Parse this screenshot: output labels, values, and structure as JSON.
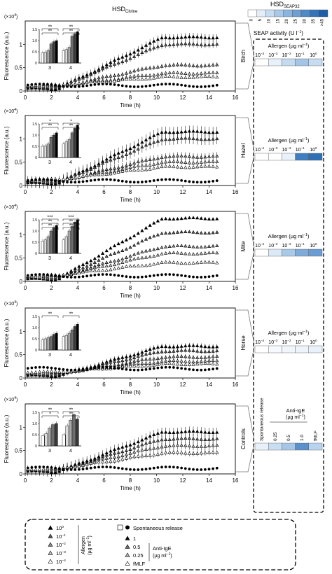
{
  "figure": {
    "main_title": "HSD",
    "main_title_sub": "Citrine",
    "y_label": "Fluorescence (a.u.)",
    "y_multiplier": "(×10",
    "y_multiplier_exp": "4",
    "y_multiplier_close": ")",
    "x_label": "Time (h)"
  },
  "heatmap": {
    "title": "HSD",
    "title_sub": "SEAP32",
    "scale_ticks": [
      "0",
      "5",
      "10",
      "15",
      "20",
      "25",
      "30",
      "35",
      ">45"
    ],
    "scale_colors": [
      "#ffffff",
      "#e3eef9",
      "#c6dcf1",
      "#a8c8e8",
      "#8bb4de",
      "#6d9fd3",
      "#4f89c6",
      "#3473b7",
      "#1f5ea6"
    ],
    "unit_label": "SEAP activity (U l",
    "unit_exp": "−1",
    "unit_close": ")",
    "allergen_label": "Allergen (µg ml",
    "allergen_exp": "−1",
    "allergen_close": ")",
    "conc_labels": [
      "10",
      "10",
      "10",
      "10",
      "10"
    ],
    "conc_exps": [
      "−4",
      "−3",
      "−2",
      "−1",
      "0"
    ],
    "rows": [
      {
        "panel": "Birch",
        "colors": [
          "#ffffff",
          "#e8f1fa",
          "#c4daef",
          "#a4c5e6",
          "#c6dcf1"
        ]
      },
      {
        "panel": "Hazel",
        "colors": [
          "#ffffff",
          "#ffffff",
          "#e9f2fa",
          "#3f7ec0",
          "#2f6fb5"
        ]
      },
      {
        "panel": "Mite",
        "colors": [
          "#ffffff",
          "#dbe9f6",
          "#a9c9e8",
          "#7fabd9",
          "#6a9dd3"
        ]
      },
      {
        "panel": "Horse",
        "colors": [
          "#ffffff",
          "#f6f9fd",
          "#f1f6fc",
          "#eef4fb",
          "#e9f1fa"
        ]
      },
      {
        "panel": "Controls",
        "colors": [
          "#e8f1fa",
          "#c9def1",
          "#a7c6e7",
          "#5b90ca",
          "#b8d3ee"
        ]
      }
    ],
    "controls_labels": [
      "Spontaneous release",
      "0.25",
      "0.5",
      "1.0",
      "fMLF"
    ],
    "anti_ige_label": "Anti-IgE",
    "anti_ige_unit": "(µg ml",
    "anti_ige_exp": "−1",
    "anti_ige_close": ")"
  },
  "legend": {
    "allergen_items": [
      {
        "label": "10",
        "exp": "0",
        "fill": "#000000"
      },
      {
        "label": "10",
        "exp": "−1",
        "fill": "#5a5a5a"
      },
      {
        "label": "10",
        "exp": "−2",
        "fill": "#8c8c8c"
      },
      {
        "label": "10",
        "exp": "−3",
        "fill": "#c4c4c4"
      },
      {
        "label": "10",
        "exp": "−4",
        "fill": "#ffffff"
      }
    ],
    "allergen_group": "Allergen",
    "allergen_group_unit": "(µg ml",
    "allergen_group_exp": "−1",
    "allergen_group_close": ")",
    "spontaneous_label": "Spontaneous release",
    "ige_items": [
      {
        "label": "1",
        "fill": "#000000"
      },
      {
        "label": "0.5",
        "fill": "#6e6e6e"
      },
      {
        "label": "0.25",
        "fill": "#b8b8b8"
      },
      {
        "label": "fMLF",
        "fill": "#ffffff"
      }
    ],
    "ige_group": "Anti-IgE",
    "ige_group_unit": "(µg ml",
    "ige_group_exp": "−1",
    "ige_group_close": ")"
  },
  "chart_data": [
    {
      "type": "scatter",
      "panel": "Birch",
      "xlim": [
        0,
        16
      ],
      "ylim": [
        0,
        1.5
      ],
      "xticks": [
        0,
        2,
        4,
        6,
        8,
        10,
        12,
        14,
        16
      ],
      "yticks": [
        0,
        0.5,
        1
      ],
      "series": [
        {
          "name": "10^0",
          "marker": "triangle",
          "fill": "#000000",
          "final": 1.13,
          "plateau": 1.15,
          "err": 0.08
        },
        {
          "name": "10^-1",
          "marker": "triangle",
          "fill": "#5a5a5a",
          "final": 0.96,
          "plateau": 1.0,
          "err": 0.07
        },
        {
          "name": "10^-2",
          "marker": "triangle",
          "fill": "#8c8c8c",
          "final": 0.55,
          "plateau": 0.55,
          "err": 0.05
        },
        {
          "name": "10^-3",
          "marker": "triangle",
          "fill": "#c4c4c4",
          "final": 0.38,
          "plateau": 0.38,
          "err": 0.04
        },
        {
          "name": "10^-4",
          "marker": "triangle",
          "fill": "#ffffff",
          "final": 0.3,
          "plateau": 0.3,
          "err": 0.03
        },
        {
          "name": "Spontaneous release",
          "marker": "circle",
          "fill": "#000000",
          "final": 0.12,
          "plateau": 0.12,
          "err": 0.02
        }
      ],
      "inset": {
        "ylim": [
          0,
          1.5
        ],
        "yticks": [
          "0",
          "0.5",
          "1.0",
          "1.5"
        ],
        "groups": [
          "3",
          "4"
        ],
        "values": [
          [
            0.45,
            0.48,
            0.55,
            0.85,
            0.95,
            1.0
          ],
          [
            0.55,
            0.6,
            0.7,
            1.2,
            1.3,
            1.4
          ]
        ],
        "sig": [
          "**",
          "**",
          "**",
          "**"
        ]
      }
    },
    {
      "type": "scatter",
      "panel": "Hazel",
      "xlim": [
        0,
        16
      ],
      "ylim": [
        0,
        1.5
      ],
      "xticks": [
        0,
        2,
        4,
        6,
        8,
        10,
        12,
        14,
        16
      ],
      "yticks": [
        0,
        0.5,
        1
      ],
      "series": [
        {
          "name": "10^0",
          "marker": "triangle",
          "fill": "#000000",
          "final": 1.14,
          "plateau": 1.15,
          "err": 0.12
        },
        {
          "name": "10^-1",
          "marker": "triangle",
          "fill": "#5a5a5a",
          "final": 1.0,
          "plateau": 1.0,
          "err": 0.12
        },
        {
          "name": "10^-2",
          "marker": "triangle",
          "fill": "#8c8c8c",
          "final": 0.6,
          "plateau": 0.62,
          "err": 0.08
        },
        {
          "name": "10^-3",
          "marker": "triangle",
          "fill": "#c4c4c4",
          "final": 0.5,
          "plateau": 0.5,
          "err": 0.05
        },
        {
          "name": "10^-4",
          "marker": "triangle",
          "fill": "#ffffff",
          "final": 0.4,
          "plateau": 0.4,
          "err": 0.04
        },
        {
          "name": "Spontaneous release",
          "marker": "circle",
          "fill": "#000000",
          "final": 0.1,
          "plateau": 0.1,
          "err": 0.02
        }
      ],
      "inset": {
        "ylim": [
          0,
          1.5
        ],
        "yticks": [
          "0",
          "0.5",
          "1.0",
          "1.5"
        ],
        "groups": [
          "3",
          "4"
        ],
        "values": [
          [
            0.5,
            0.52,
            0.6,
            0.9,
            1.0,
            1.1
          ],
          [
            0.6,
            0.7,
            0.8,
            1.1,
            1.3,
            1.45
          ]
        ],
        "sig": [
          "*",
          "**",
          "*",
          "**"
        ]
      }
    },
    {
      "type": "scatter",
      "panel": "Mite",
      "xlim": [
        0,
        16
      ],
      "ylim": [
        0,
        1.5
      ],
      "xticks": [
        0,
        2,
        4,
        6,
        8,
        10,
        12,
        14,
        16
      ],
      "yticks": [
        0,
        0.5,
        1
      ],
      "series": [
        {
          "name": "10^0",
          "marker": "triangle",
          "fill": "#000000",
          "final": 1.35,
          "plateau": 1.35,
          "err": 0.03
        },
        {
          "name": "10^-1",
          "marker": "triangle",
          "fill": "#5a5a5a",
          "final": 1.05,
          "plateau": 1.05,
          "err": 0.03
        },
        {
          "name": "10^-2",
          "marker": "triangle",
          "fill": "#8c8c8c",
          "final": 0.75,
          "plateau": 0.75,
          "err": 0.03
        },
        {
          "name": "10^-3",
          "marker": "triangle",
          "fill": "#c4c4c4",
          "final": 0.6,
          "plateau": 0.6,
          "err": 0.03
        },
        {
          "name": "10^-4",
          "marker": "triangle",
          "fill": "#ffffff",
          "final": 0.4,
          "plateau": 0.4,
          "err": 0.03
        },
        {
          "name": "Spontaneous release",
          "marker": "circle",
          "fill": "#000000",
          "final": 0.12,
          "plateau": 0.12,
          "err": 0.02
        }
      ],
      "inset": {
        "ylim": [
          0,
          1.5
        ],
        "yticks": [
          "0",
          "0.5",
          "1.0",
          "1.5"
        ],
        "groups": [
          "3",
          "4"
        ],
        "values": [
          [
            0.55,
            0.6,
            0.75,
            1.0,
            1.15,
            1.25
          ],
          [
            0.6,
            0.75,
            1.0,
            1.2,
            1.4,
            1.5
          ]
        ],
        "sig": [
          "***",
          "**",
          "**",
          "***",
          "**",
          "**"
        ]
      }
    },
    {
      "type": "scatter",
      "panel": "Horse",
      "xlim": [
        0,
        16
      ],
      "ylim": [
        0,
        1.5
      ],
      "xticks": [
        0,
        2,
        4,
        6,
        8,
        10,
        12,
        14,
        16
      ],
      "yticks": [
        0,
        0.5,
        1
      ],
      "series": [
        {
          "name": "10^0",
          "marker": "triangle",
          "fill": "#000000",
          "final": 0.68,
          "plateau": 0.68,
          "err": 0.06
        },
        {
          "name": "10^-1",
          "marker": "triangle",
          "fill": "#5a5a5a",
          "final": 0.58,
          "plateau": 0.58,
          "err": 0.05
        },
        {
          "name": "10^-2",
          "marker": "triangle",
          "fill": "#8c8c8c",
          "final": 0.45,
          "plateau": 0.45,
          "err": 0.05
        },
        {
          "name": "10^-3",
          "marker": "triangle",
          "fill": "#c4c4c4",
          "final": 0.36,
          "plateau": 0.36,
          "err": 0.04
        },
        {
          "name": "10^-4",
          "marker": "triangle",
          "fill": "#ffffff",
          "final": 0.3,
          "plateau": 0.3,
          "err": 0.04
        },
        {
          "name": "Spontaneous release",
          "marker": "circle",
          "fill": "#000000",
          "final": 0.2,
          "plateau": 0.2,
          "err": 0.02
        }
      ],
      "inset": {
        "ylim": [
          0,
          1.5
        ],
        "yticks": [
          "0",
          "0.5",
          "1.0",
          "1.5"
        ],
        "groups": [
          "3",
          "4"
        ],
        "values": [
          [
            0.45,
            0.5,
            0.55,
            0.6,
            0.7,
            0.75
          ],
          [
            0.6,
            0.65,
            0.75,
            0.9,
            1.05,
            1.15
          ]
        ],
        "sig": [
          "**",
          "**"
        ]
      }
    },
    {
      "type": "scatter",
      "panel": "Controls",
      "xlim": [
        0,
        16
      ],
      "ylim": [
        0,
        1.5
      ],
      "xticks": [
        0,
        2,
        4,
        6,
        8,
        10,
        12,
        14,
        16
      ],
      "yticks": [
        0,
        0.5,
        1
      ],
      "series": [
        {
          "name": "1",
          "marker": "triangle",
          "fill": "#000000",
          "final": 0.9,
          "plateau": 0.9,
          "err": 0.1
        },
        {
          "name": "0.5",
          "marker": "triangle",
          "fill": "#6e6e6e",
          "final": 0.75,
          "plateau": 0.75,
          "err": 0.1
        },
        {
          "name": "0.25",
          "marker": "triangle",
          "fill": "#b8b8b8",
          "final": 0.6,
          "plateau": 0.6,
          "err": 0.08
        },
        {
          "name": "fMLF",
          "marker": "triangle",
          "fill": "#ffffff",
          "final": 0.45,
          "plateau": 0.45,
          "err": 0.06
        },
        {
          "name": "Spontaneous release",
          "marker": "circle",
          "fill": "#000000",
          "final": 0.12,
          "plateau": 0.12,
          "err": 0.02
        }
      ],
      "inset": {
        "ylim": [
          0,
          1.5
        ],
        "yticks": [
          "0",
          "0.5",
          "1.0",
          "1.5"
        ],
        "groups": [
          "3",
          "4"
        ],
        "values": [
          [
            0.45,
            0.55,
            0.8,
            0.95,
            1.0
          ],
          [
            0.5,
            0.9,
            1.15,
            1.4,
            1.2
          ]
        ],
        "sig": [
          "**",
          "*",
          "**",
          "**"
        ]
      }
    }
  ]
}
